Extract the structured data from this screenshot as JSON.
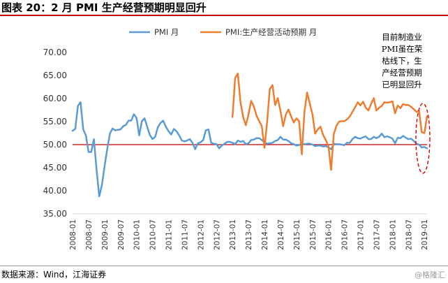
{
  "figure": {
    "title": "图表 20：2 月 PMI 生产经营预期明显回升",
    "source": "数据来源：Wind，江海证券",
    "watermark": "@格隆汇"
  },
  "colors": {
    "pmi": "#5b9bd5",
    "expectation": "#ed7d31",
    "reference": "#c00000",
    "annotation": "#e00000",
    "title_rule": "#c00000"
  },
  "chart_data": {
    "type": "line",
    "ylim": [
      35,
      70
    ],
    "yticks": [
      "35.00",
      "40.00",
      "45.00",
      "50.00",
      "55.00",
      "60.00",
      "65.00",
      "70.00"
    ],
    "x_start": "2008-01",
    "x_end": "2019-02",
    "xticks": [
      "2008-01",
      "2008-07",
      "2009-01",
      "2009-07",
      "2010-01",
      "2010-07",
      "2011-01",
      "2011-07",
      "2012-01",
      "2012-07",
      "2013-01",
      "2013-07",
      "2014-01",
      "2014-07",
      "2015-01",
      "2015-07",
      "2016-01",
      "2016-07",
      "2017-01",
      "2017-07",
      "2018-01",
      "2018-07",
      "2019-01"
    ],
    "reference_line": 50,
    "legend_position": "top",
    "grid": false,
    "annotation": "目前制造业PMI虽在荣枯线下，生产经营预期已明显回升",
    "series": [
      {
        "name": "PMI 月",
        "color": "#5b9bd5",
        "points": [
          [
            "2008-01",
            53.0
          ],
          [
            "2008-02",
            53.4
          ],
          [
            "2008-03",
            58.4
          ],
          [
            "2008-04",
            59.2
          ],
          [
            "2008-05",
            53.3
          ],
          [
            "2008-06",
            52.0
          ],
          [
            "2008-07",
            48.4
          ],
          [
            "2008-08",
            48.4
          ],
          [
            "2008-09",
            51.2
          ],
          [
            "2008-10",
            44.6
          ],
          [
            "2008-11",
            38.8
          ],
          [
            "2008-12",
            41.2
          ],
          [
            "2009-01",
            45.3
          ],
          [
            "2009-02",
            49.0
          ],
          [
            "2009-03",
            52.4
          ],
          [
            "2009-04",
            53.5
          ],
          [
            "2009-05",
            53.1
          ],
          [
            "2009-06",
            53.2
          ],
          [
            "2009-07",
            53.3
          ],
          [
            "2009-08",
            54.0
          ],
          [
            "2009-09",
            54.3
          ],
          [
            "2009-10",
            55.2
          ],
          [
            "2009-11",
            55.2
          ],
          [
            "2009-12",
            56.6
          ],
          [
            "2010-01",
            55.8
          ],
          [
            "2010-02",
            52.0
          ],
          [
            "2010-03",
            55.1
          ],
          [
            "2010-04",
            55.7
          ],
          [
            "2010-05",
            53.9
          ],
          [
            "2010-06",
            52.1
          ],
          [
            "2010-07",
            51.2
          ],
          [
            "2010-08",
            51.7
          ],
          [
            "2010-09",
            53.8
          ],
          [
            "2010-10",
            54.7
          ],
          [
            "2010-11",
            55.2
          ],
          [
            "2010-12",
            53.9
          ],
          [
            "2011-01",
            52.9
          ],
          [
            "2011-02",
            52.2
          ],
          [
            "2011-03",
            53.4
          ],
          [
            "2011-04",
            52.9
          ],
          [
            "2011-05",
            52.0
          ],
          [
            "2011-06",
            50.9
          ],
          [
            "2011-07",
            50.7
          ],
          [
            "2011-08",
            50.9
          ],
          [
            "2011-09",
            51.2
          ],
          [
            "2011-10",
            50.4
          ],
          [
            "2011-11",
            49.0
          ],
          [
            "2011-12",
            50.3
          ],
          [
            "2012-01",
            50.5
          ],
          [
            "2012-02",
            51.0
          ],
          [
            "2012-03",
            53.1
          ],
          [
            "2012-04",
            53.3
          ],
          [
            "2012-05",
            50.4
          ],
          [
            "2012-06",
            50.2
          ],
          [
            "2012-07",
            50.1
          ],
          [
            "2012-08",
            49.2
          ],
          [
            "2012-09",
            49.8
          ],
          [
            "2012-10",
            50.2
          ],
          [
            "2012-11",
            50.6
          ],
          [
            "2012-12",
            50.6
          ],
          [
            "2013-01",
            50.4
          ],
          [
            "2013-02",
            50.1
          ],
          [
            "2013-03",
            50.9
          ],
          [
            "2013-04",
            50.6
          ],
          [
            "2013-05",
            50.8
          ],
          [
            "2013-06",
            50.1
          ],
          [
            "2013-07",
            50.3
          ],
          [
            "2013-08",
            51.0
          ],
          [
            "2013-09",
            51.1
          ],
          [
            "2013-10",
            51.4
          ],
          [
            "2013-11",
            51.4
          ],
          [
            "2013-12",
            51.0
          ],
          [
            "2014-01",
            50.5
          ],
          [
            "2014-02",
            50.2
          ],
          [
            "2014-03",
            50.3
          ],
          [
            "2014-04",
            50.4
          ],
          [
            "2014-05",
            50.8
          ],
          [
            "2014-06",
            51.0
          ],
          [
            "2014-07",
            51.7
          ],
          [
            "2014-08",
            51.1
          ],
          [
            "2014-09",
            51.1
          ],
          [
            "2014-10",
            50.8
          ],
          [
            "2014-11",
            50.3
          ],
          [
            "2014-12",
            50.1
          ],
          [
            "2015-01",
            49.8
          ],
          [
            "2015-02",
            49.9
          ],
          [
            "2015-03",
            50.1
          ],
          [
            "2015-04",
            50.1
          ],
          [
            "2015-05",
            50.2
          ],
          [
            "2015-06",
            50.2
          ],
          [
            "2015-07",
            50.0
          ],
          [
            "2015-08",
            49.7
          ],
          [
            "2015-09",
            49.8
          ],
          [
            "2015-10",
            49.8
          ],
          [
            "2015-11",
            49.6
          ],
          [
            "2015-12",
            49.7
          ],
          [
            "2016-01",
            49.4
          ],
          [
            "2016-02",
            49.0
          ],
          [
            "2016-03",
            50.2
          ],
          [
            "2016-04",
            50.1
          ],
          [
            "2016-05",
            50.1
          ],
          [
            "2016-06",
            50.0
          ],
          [
            "2016-07",
            49.9
          ],
          [
            "2016-08",
            50.4
          ],
          [
            "2016-09",
            50.4
          ],
          [
            "2016-10",
            51.2
          ],
          [
            "2016-11",
            51.7
          ],
          [
            "2016-12",
            51.4
          ],
          [
            "2017-01",
            51.3
          ],
          [
            "2017-02",
            51.6
          ],
          [
            "2017-03",
            51.8
          ],
          [
            "2017-04",
            51.2
          ],
          [
            "2017-05",
            51.2
          ],
          [
            "2017-06",
            51.7
          ],
          [
            "2017-07",
            51.4
          ],
          [
            "2017-08",
            51.7
          ],
          [
            "2017-09",
            52.4
          ],
          [
            "2017-10",
            51.6
          ],
          [
            "2017-11",
            51.8
          ],
          [
            "2017-12",
            51.6
          ],
          [
            "2018-01",
            51.3
          ],
          [
            "2018-02",
            50.3
          ],
          [
            "2018-03",
            51.5
          ],
          [
            "2018-04",
            51.4
          ],
          [
            "2018-05",
            51.9
          ],
          [
            "2018-06",
            51.5
          ],
          [
            "2018-07",
            51.2
          ],
          [
            "2018-08",
            51.3
          ],
          [
            "2018-09",
            50.8
          ],
          [
            "2018-10",
            50.2
          ],
          [
            "2018-11",
            50.0
          ],
          [
            "2018-12",
            49.4
          ],
          [
            "2019-01",
            49.5
          ],
          [
            "2019-02",
            49.2
          ]
        ]
      },
      {
        "name": "PMI:生产经营活动预期 月",
        "color": "#ed7d31",
        "points": [
          [
            "2013-01",
            56.0
          ],
          [
            "2013-02",
            64.5
          ],
          [
            "2013-03",
            65.4
          ],
          [
            "2013-04",
            59.2
          ],
          [
            "2013-05",
            56.0
          ],
          [
            "2013-06",
            54.2
          ],
          [
            "2013-07",
            56.5
          ],
          [
            "2013-08",
            59.5
          ],
          [
            "2013-09",
            58.3
          ],
          [
            "2013-10",
            56.3
          ],
          [
            "2013-11",
            55.1
          ],
          [
            "2013-12",
            54.0
          ],
          [
            "2014-01",
            49.3
          ],
          [
            "2014-02",
            55.0
          ],
          [
            "2014-03",
            62.1
          ],
          [
            "2014-04",
            62.9
          ],
          [
            "2014-05",
            58.6
          ],
          [
            "2014-06",
            60.1
          ],
          [
            "2014-07",
            57.3
          ],
          [
            "2014-08",
            54.0
          ],
          [
            "2014-09",
            56.5
          ],
          [
            "2014-10",
            57.6
          ],
          [
            "2014-11",
            56.1
          ],
          [
            "2014-12",
            54.8
          ],
          [
            "2015-01",
            55.7
          ],
          [
            "2015-02",
            55.1
          ],
          [
            "2015-03",
            47.9
          ],
          [
            "2015-04",
            57.1
          ],
          [
            "2015-05",
            61.3
          ],
          [
            "2015-06",
            58.9
          ],
          [
            "2015-07",
            56.6
          ],
          [
            "2015-08",
            52.4
          ],
          [
            "2015-09",
            53.3
          ],
          [
            "2015-10",
            53.9
          ],
          [
            "2015-11",
            52.1
          ],
          [
            "2015-12",
            51.0
          ],
          [
            "2016-01",
            49.7
          ],
          [
            "2016-02",
            44.5
          ],
          [
            "2016-03",
            52.3
          ],
          [
            "2016-04",
            54.1
          ],
          [
            "2016-05",
            55.0
          ],
          [
            "2016-06",
            55.1
          ],
          [
            "2016-07",
            55.1
          ],
          [
            "2016-08",
            55.5
          ],
          [
            "2016-09",
            56.1
          ],
          [
            "2016-10",
            57.1
          ],
          [
            "2016-11",
            58.1
          ],
          [
            "2016-12",
            59.2
          ],
          [
            "2017-01",
            58.5
          ],
          [
            "2017-02",
            59.3
          ],
          [
            "2017-03",
            58.0
          ],
          [
            "2017-04",
            57.4
          ],
          [
            "2017-05",
            58.8
          ],
          [
            "2017-06",
            60.1
          ],
          [
            "2017-07",
            57.4
          ],
          [
            "2017-08",
            58.0
          ],
          [
            "2017-09",
            58.4
          ],
          [
            "2017-10",
            59.2
          ],
          [
            "2017-11",
            59.1
          ],
          [
            "2017-12",
            59.2
          ],
          [
            "2018-01",
            59.4
          ],
          [
            "2018-02",
            56.8
          ],
          [
            "2018-03",
            58.5
          ],
          [
            "2018-04",
            57.9
          ],
          [
            "2018-05",
            58.8
          ],
          [
            "2018-06",
            58.6
          ],
          [
            "2018-07",
            58.6
          ],
          [
            "2018-08",
            58.2
          ],
          [
            "2018-09",
            57.7
          ],
          [
            "2018-10",
            57.1
          ],
          [
            "2018-11",
            57.3
          ],
          [
            "2018-12",
            52.7
          ],
          [
            "2019-01",
            52.5
          ],
          [
            "2019-02",
            56.2
          ]
        ]
      }
    ]
  }
}
